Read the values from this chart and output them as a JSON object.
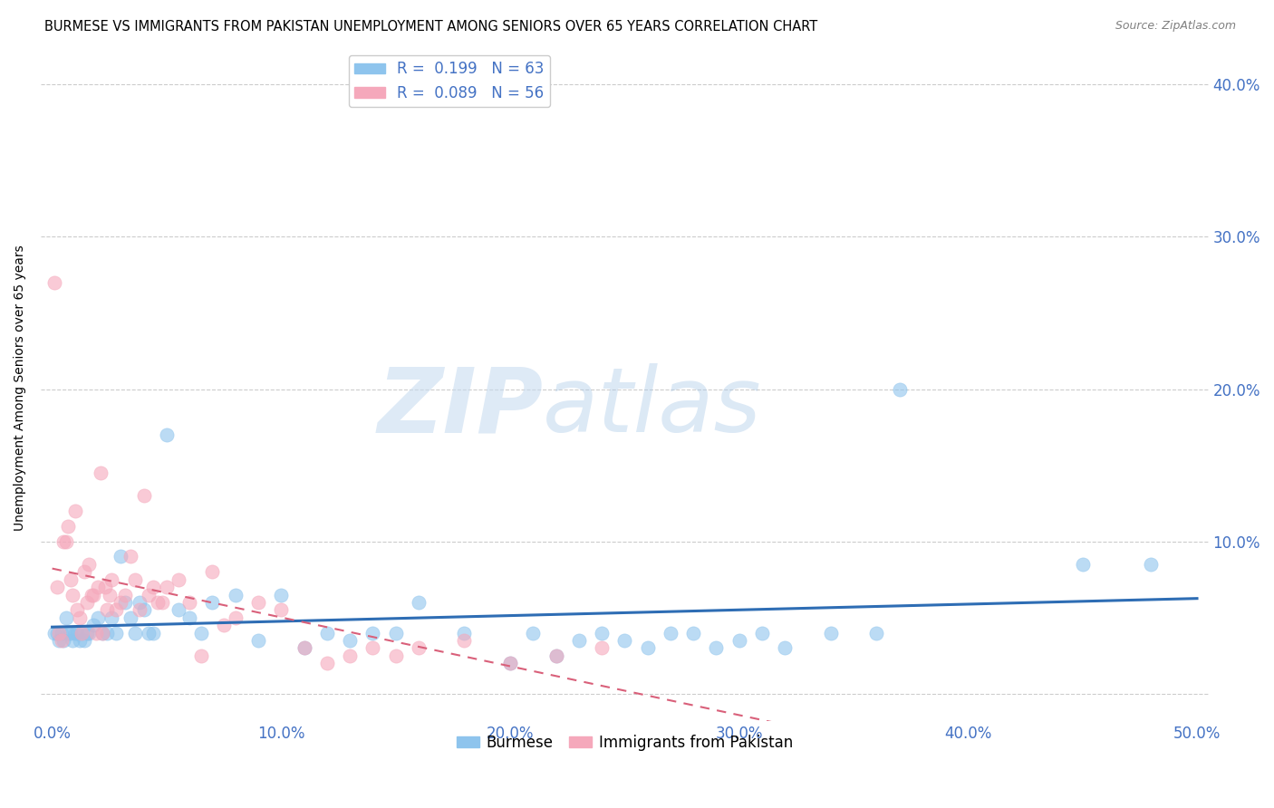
{
  "title": "BURMESE VS IMMIGRANTS FROM PAKISTAN UNEMPLOYMENT AMONG SENIORS OVER 65 YEARS CORRELATION CHART",
  "source": "Source: ZipAtlas.com",
  "ylabel": "Unemployment Among Seniors over 65 years",
  "xlim": [
    -0.005,
    0.505
  ],
  "ylim": [
    -0.018,
    0.42
  ],
  "xticks": [
    0.0,
    0.1,
    0.2,
    0.3,
    0.4,
    0.5
  ],
  "yticks": [
    0.0,
    0.1,
    0.2,
    0.3,
    0.4
  ],
  "xtick_labels": [
    "0.0%",
    "10.0%",
    "20.0%",
    "30.0%",
    "40.0%",
    "50.0%"
  ],
  "ytick_labels_right": [
    "",
    "10.0%",
    "20.0%",
    "30.0%",
    "40.0%"
  ],
  "blue_color": "#8EC4ED",
  "pink_color": "#F5A8BB",
  "blue_line_color": "#2E6DB4",
  "pink_line_color": "#D9607A",
  "R_blue": 0.199,
  "N_blue": 63,
  "R_pink": 0.089,
  "N_pink": 56,
  "legend_label_blue": "Burmese",
  "legend_label_pink": "Immigrants from Pakistan",
  "blue_x": [
    0.001,
    0.002,
    0.003,
    0.004,
    0.005,
    0.006,
    0.007,
    0.008,
    0.009,
    0.01,
    0.011,
    0.012,
    0.013,
    0.014,
    0.015,
    0.016,
    0.018,
    0.02,
    0.022,
    0.024,
    0.026,
    0.028,
    0.03,
    0.032,
    0.034,
    0.036,
    0.038,
    0.04,
    0.042,
    0.044,
    0.05,
    0.055,
    0.06,
    0.065,
    0.07,
    0.08,
    0.09,
    0.1,
    0.11,
    0.12,
    0.13,
    0.14,
    0.15,
    0.16,
    0.18,
    0.2,
    0.21,
    0.22,
    0.23,
    0.24,
    0.25,
    0.26,
    0.27,
    0.28,
    0.29,
    0.3,
    0.31,
    0.32,
    0.34,
    0.36,
    0.37,
    0.45,
    0.48
  ],
  "blue_y": [
    0.04,
    0.04,
    0.035,
    0.04,
    0.035,
    0.05,
    0.04,
    0.04,
    0.035,
    0.04,
    0.04,
    0.035,
    0.04,
    0.035,
    0.04,
    0.04,
    0.045,
    0.05,
    0.04,
    0.04,
    0.05,
    0.04,
    0.09,
    0.06,
    0.05,
    0.04,
    0.06,
    0.055,
    0.04,
    0.04,
    0.17,
    0.055,
    0.05,
    0.04,
    0.06,
    0.065,
    0.035,
    0.065,
    0.03,
    0.04,
    0.035,
    0.04,
    0.04,
    0.06,
    0.04,
    0.02,
    0.04,
    0.025,
    0.035,
    0.04,
    0.035,
    0.03,
    0.04,
    0.04,
    0.03,
    0.035,
    0.04,
    0.03,
    0.04,
    0.04,
    0.2,
    0.085,
    0.085
  ],
  "pink_x": [
    0.001,
    0.002,
    0.003,
    0.004,
    0.005,
    0.006,
    0.007,
    0.008,
    0.009,
    0.01,
    0.011,
    0.012,
    0.013,
    0.014,
    0.015,
    0.016,
    0.017,
    0.018,
    0.019,
    0.02,
    0.021,
    0.022,
    0.023,
    0.024,
    0.025,
    0.026,
    0.028,
    0.03,
    0.032,
    0.034,
    0.036,
    0.038,
    0.04,
    0.042,
    0.044,
    0.046,
    0.048,
    0.05,
    0.055,
    0.06,
    0.065,
    0.07,
    0.075,
    0.08,
    0.09,
    0.1,
    0.11,
    0.12,
    0.13,
    0.14,
    0.15,
    0.16,
    0.18,
    0.2,
    0.22,
    0.24
  ],
  "pink_y": [
    0.27,
    0.07,
    0.04,
    0.035,
    0.1,
    0.1,
    0.11,
    0.075,
    0.065,
    0.12,
    0.055,
    0.05,
    0.04,
    0.08,
    0.06,
    0.085,
    0.065,
    0.065,
    0.04,
    0.07,
    0.145,
    0.04,
    0.07,
    0.055,
    0.065,
    0.075,
    0.055,
    0.06,
    0.065,
    0.09,
    0.075,
    0.055,
    0.13,
    0.065,
    0.07,
    0.06,
    0.06,
    0.07,
    0.075,
    0.06,
    0.025,
    0.08,
    0.045,
    0.05,
    0.06,
    0.055,
    0.03,
    0.02,
    0.025,
    0.03,
    0.025,
    0.03,
    0.035,
    0.02,
    0.025,
    0.03
  ],
  "watermark_zip": "ZIP",
  "watermark_atlas": "atlas",
  "background_color": "#FFFFFF",
  "grid_color": "#CCCCCC",
  "title_fontsize": 10.5,
  "axis_label_fontsize": 10,
  "tick_color": "#4472C4",
  "legend_text_color": "#4472C4"
}
